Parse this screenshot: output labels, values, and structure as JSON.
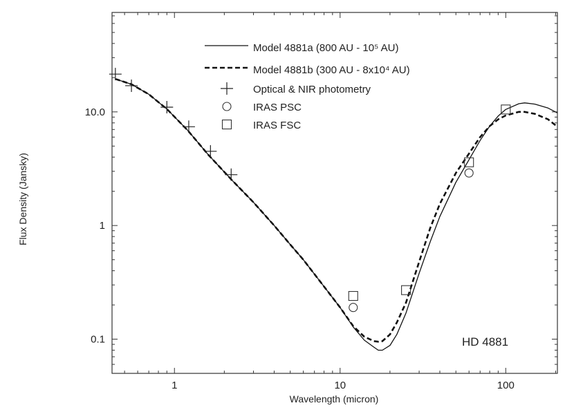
{
  "chart_data": {
    "type": "scatter",
    "xlabel": "Wavelength (micron)",
    "ylabel": "Flux Density (Jansky)",
    "x_scale": "log",
    "y_scale": "log",
    "xlim": [
      0.42,
      205
    ],
    "ylim": [
      0.05,
      75
    ],
    "x_ticks": [
      {
        "v": 1,
        "label": "1"
      },
      {
        "v": 10,
        "label": "10"
      },
      {
        "v": 100,
        "label": "100"
      }
    ],
    "y_ticks": [
      {
        "v": 0.1,
        "label": "0.1"
      },
      {
        "v": 1,
        "label": "1"
      },
      {
        "v": 10,
        "label": "10.0"
      }
    ],
    "annotation": "HD 4881",
    "legend_position": "top-center",
    "series": [
      {
        "name": "Model 4881a (800 AU - 10⁵ AU)",
        "kind": "line",
        "style": "solid",
        "x": [
          0.44,
          0.55,
          0.7,
          0.9,
          1.2,
          1.6,
          2.2,
          3,
          4,
          5,
          6,
          8,
          10,
          12,
          14,
          16,
          17,
          18,
          20,
          22,
          25,
          30,
          35,
          40,
          50,
          60,
          70,
          80,
          90,
          100,
          120,
          130,
          150,
          180,
          205
        ],
        "y": [
          19.5,
          17.5,
          14.3,
          10.6,
          6.9,
          4.2,
          2.55,
          1.6,
          1.0,
          0.68,
          0.5,
          0.29,
          0.19,
          0.128,
          0.098,
          0.085,
          0.08,
          0.08,
          0.088,
          0.11,
          0.17,
          0.38,
          0.72,
          1.2,
          2.4,
          3.8,
          5.6,
          7.5,
          9.2,
          10.5,
          11.8,
          12.0,
          11.7,
          10.8,
          9.8
        ]
      },
      {
        "name": "Model 4881b (300 AU - 8x10⁴ AU)",
        "kind": "line",
        "style": "dashed",
        "x": [
          0.44,
          0.55,
          0.7,
          0.9,
          1.2,
          1.6,
          2.2,
          3,
          4,
          5,
          6,
          8,
          10,
          12,
          14,
          16,
          17,
          18,
          20,
          22,
          25,
          30,
          35,
          40,
          50,
          60,
          70,
          80,
          90,
          100,
          120,
          130,
          150,
          180,
          205
        ],
        "y": [
          19.5,
          17.5,
          14.3,
          10.6,
          6.9,
          4.2,
          2.55,
          1.6,
          1.0,
          0.68,
          0.5,
          0.29,
          0.19,
          0.13,
          0.105,
          0.096,
          0.095,
          0.096,
          0.11,
          0.14,
          0.21,
          0.48,
          0.95,
          1.55,
          2.9,
          4.3,
          6.0,
          7.5,
          8.6,
          9.3,
          10.0,
          10.0,
          9.6,
          8.6,
          7.4
        ]
      },
      {
        "name": "Optical & NIR photometry",
        "kind": "marker",
        "marker": "plus",
        "x": [
          0.44,
          0.55,
          0.9,
          1.22,
          1.65,
          2.2
        ],
        "y": [
          21.5,
          17.0,
          11.0,
          7.4,
          4.5,
          2.8
        ]
      },
      {
        "name": "IRAS PSC",
        "kind": "marker",
        "marker": "circle",
        "x": [
          12,
          60
        ],
        "y": [
          0.19,
          2.9
        ]
      },
      {
        "name": "IRAS FSC",
        "kind": "marker",
        "marker": "square",
        "x": [
          12,
          25,
          60,
          100
        ],
        "y": [
          0.24,
          0.27,
          3.6,
          10.5
        ]
      }
    ]
  }
}
